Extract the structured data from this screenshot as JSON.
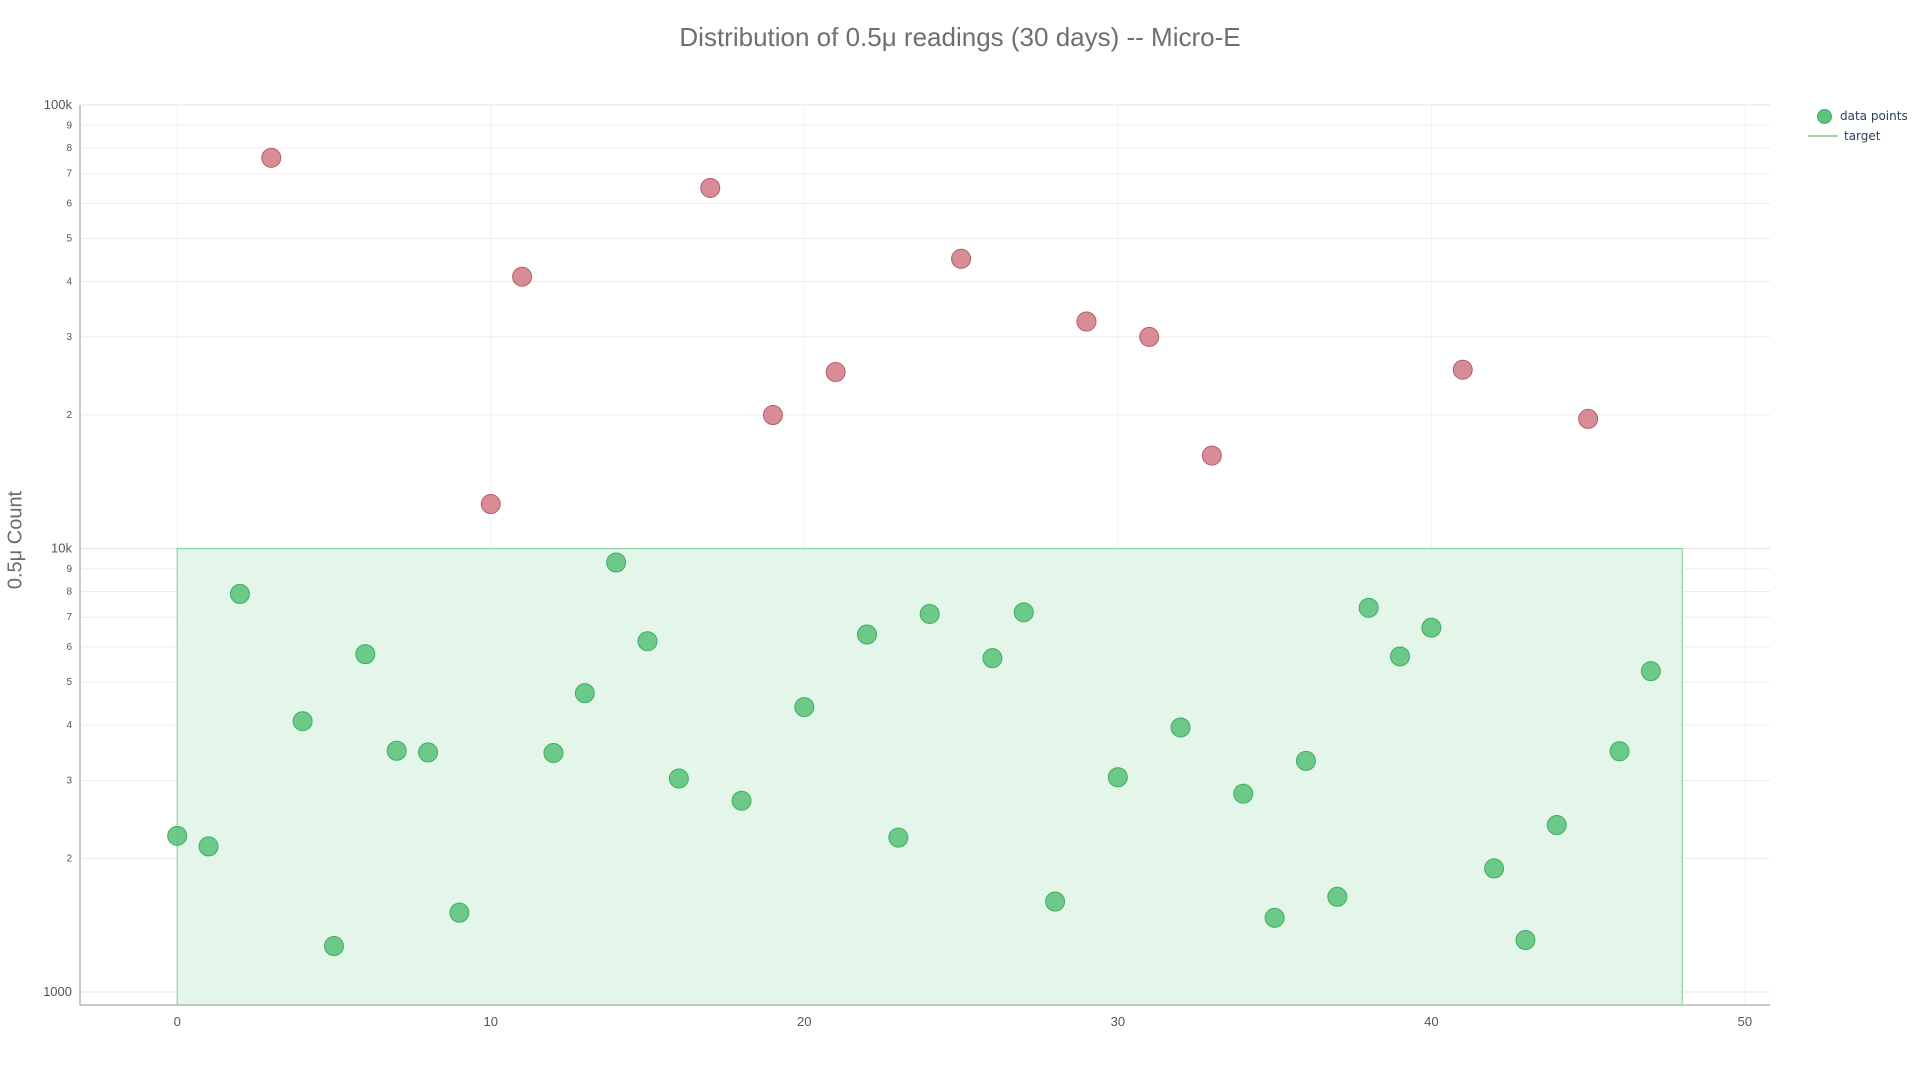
{
  "chart_data": {
    "type": "scatter",
    "title": "Distribution of 0.5μ readings (30 days) -- Micro-E",
    "xlabel": "",
    "ylabel": "0.5μ Count",
    "yscale": "log",
    "xlim": [
      -3.1,
      50.8
    ],
    "ylim": [
      935,
      100000
    ],
    "x_ticks": [
      0,
      10,
      20,
      30,
      40,
      50
    ],
    "y_major_ticks": [
      {
        "value": 1000,
        "label": "1000"
      },
      {
        "value": 10000,
        "label": "10k"
      },
      {
        "value": 100000,
        "label": "100k"
      }
    ],
    "y_minor_ticks": [
      {
        "value": 2000,
        "label": "2"
      },
      {
        "value": 3000,
        "label": "3"
      },
      {
        "value": 4000,
        "label": "4"
      },
      {
        "value": 5000,
        "label": "5"
      },
      {
        "value": 6000,
        "label": "6"
      },
      {
        "value": 7000,
        "label": "7"
      },
      {
        "value": 8000,
        "label": "8"
      },
      {
        "value": 9000,
        "label": "9"
      },
      {
        "value": 20000,
        "label": "2"
      },
      {
        "value": 30000,
        "label": "3"
      },
      {
        "value": 40000,
        "label": "4"
      },
      {
        "value": 50000,
        "label": "5"
      },
      {
        "value": 60000,
        "label": "6"
      },
      {
        "value": 70000,
        "label": "7"
      },
      {
        "value": 80000,
        "label": "8"
      },
      {
        "value": 90000,
        "label": "9"
      }
    ],
    "grid": true,
    "legend_position": "top-right",
    "target_band": {
      "name": "target",
      "x": [
        0,
        48
      ],
      "y": [
        0,
        10000
      ],
      "fill": "#e4f5e9",
      "stroke": "#8fd3a3"
    },
    "colors": {
      "in_target": "#5ec47d",
      "in_target_edge": "#3fae63",
      "out_of_target": "#d47f8a",
      "out_of_target_edge": "#b35e6b"
    },
    "series": [
      {
        "name": "data points",
        "x": [
          0,
          1,
          2,
          3,
          4,
          5,
          6,
          7,
          8,
          9,
          10,
          11,
          12,
          13,
          14,
          15,
          16,
          17,
          18,
          19,
          20,
          21,
          22,
          23,
          24,
          25,
          26,
          27,
          28,
          29,
          30,
          31,
          32,
          33,
          34,
          35,
          36,
          37,
          38,
          39,
          40,
          41,
          42,
          43,
          44,
          45,
          46,
          47
        ],
        "y": [
          2250,
          2130,
          7900,
          76000,
          4080,
          1270,
          5780,
          3500,
          3470,
          1510,
          12600,
          41000,
          3460,
          4720,
          9300,
          6180,
          3030,
          65000,
          2700,
          20000,
          4390,
          25000,
          6400,
          2230,
          7120,
          45000,
          5660,
          7180,
          1600,
          32500,
          3050,
          30000,
          3950,
          16200,
          2800,
          1470,
          3320,
          1640,
          7350,
          5710,
          6630,
          25300,
          1900,
          1310,
          2380,
          19600,
          3490,
          5290
        ]
      }
    ]
  },
  "legend": {
    "points_label": "data points",
    "target_label": "target"
  }
}
